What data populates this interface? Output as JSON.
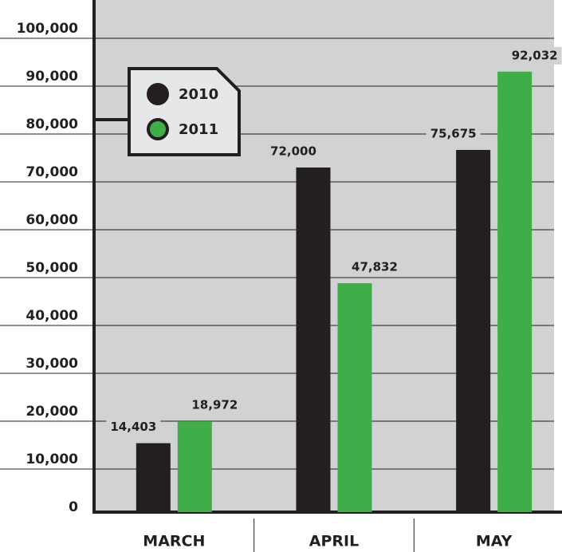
{
  "chart_data": {
    "type": "bar",
    "categories": [
      "MARCH",
      "APRIL",
      "MAY"
    ],
    "series": [
      {
        "name": "2010",
        "color": "#231f20",
        "values": [
          14403,
          72000,
          75675
        ],
        "value_labels": [
          "14,403",
          "72,000",
          "75,675"
        ]
      },
      {
        "name": "2011",
        "color": "#3fae49",
        "values": [
          18972,
          47832,
          92032
        ],
        "value_labels": [
          "18,972",
          "47,832",
          "92,032"
        ]
      }
    ],
    "ylim": [
      0,
      100000
    ],
    "yticks": [
      0,
      {
        "value": 10000,
        "label": "10,000"
      },
      {
        "value": 20000,
        "label": "20,000"
      },
      {
        "value": 30000,
        "label": "30,000"
      },
      {
        "value": 40000,
        "label": "40,000"
      },
      {
        "value": 50000,
        "label": "50,000"
      },
      {
        "value": 60000,
        "label": "60,000"
      },
      {
        "value": 70000,
        "label": "70,000"
      },
      {
        "value": 80000,
        "label": "80,000"
      },
      {
        "value": 90000,
        "label": "90,000"
      },
      {
        "value": 100000,
        "label": "100,000"
      }
    ],
    "grid": true
  }
}
